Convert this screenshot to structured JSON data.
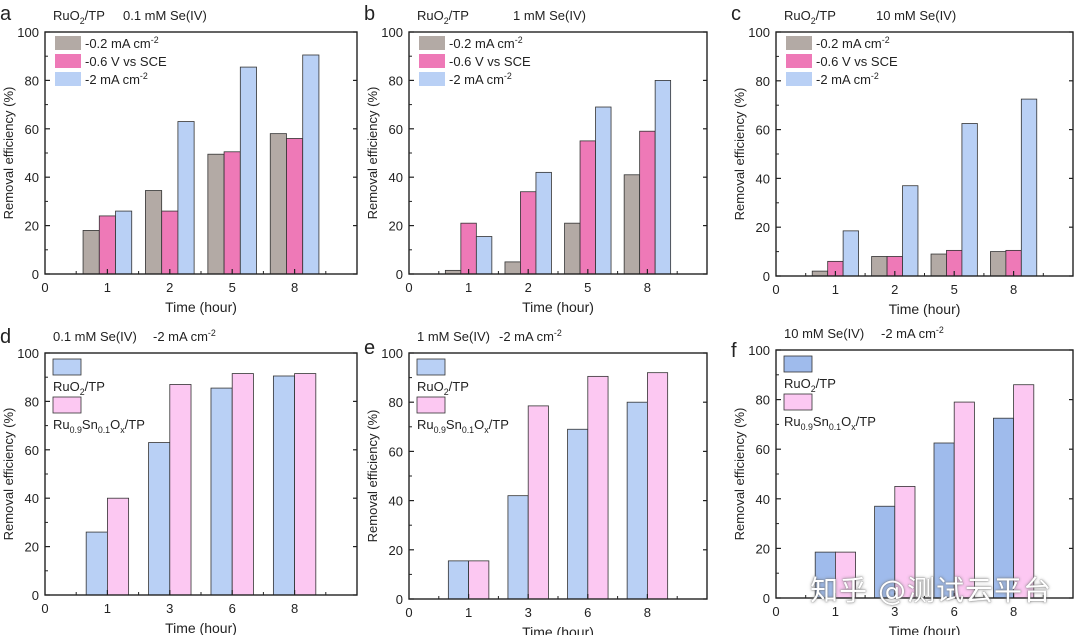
{
  "colors": {
    "gray": "#b3aaa5",
    "pink": "#ee79b7",
    "blue": "#b9d0f5",
    "blue_mid": "#9fbbec",
    "light_pink": "#fcc8f2",
    "stroke": "#333333"
  },
  "watermark": "知乎 @测试云平台",
  "chart_data": [
    {
      "panel": "a",
      "type": "bar",
      "title_main": "RuO",
      "title_sub": "2",
      "title_rest": "/TP",
      "title_cond": "0.1 mM Se(IV)",
      "xlabel": "Time (hour)",
      "ylabel": "Removal efficiency (%)",
      "ylim": [
        0,
        100
      ],
      "yticks": [
        0,
        20,
        40,
        60,
        80,
        100
      ],
      "categories": [
        "1",
        "2",
        "5",
        "8"
      ],
      "x_zero_label": "0",
      "legend_position": "top-left",
      "series": [
        {
          "name": "-0.2 mA cm",
          "sup": "-2",
          "color": "gray",
          "values": [
            18,
            34.5,
            49.5,
            58
          ]
        },
        {
          "name": "-0.6 V vs SCE",
          "sup": "",
          "color": "pink",
          "values": [
            24,
            26,
            50.5,
            56
          ]
        },
        {
          "name": "-2 mA cm",
          "sup": "-2",
          "color": "blue",
          "values": [
            26,
            63,
            85.5,
            90.5
          ]
        }
      ]
    },
    {
      "panel": "b",
      "type": "bar",
      "title_main": "RuO",
      "title_sub": "2",
      "title_rest": "/TP",
      "title_cond": "1 mM Se(IV)",
      "xlabel": "Time (hour)",
      "ylabel": "Removal efficiency (%)",
      "ylim": [
        0,
        100
      ],
      "yticks": [
        0,
        20,
        40,
        60,
        80,
        100
      ],
      "categories": [
        "1",
        "2",
        "5",
        "8"
      ],
      "x_zero_label": "0",
      "legend_position": "top-left",
      "series": [
        {
          "name": "-0.2 mA cm",
          "sup": "-2",
          "color": "gray",
          "values": [
            1.5,
            5,
            21,
            41
          ]
        },
        {
          "name": "-0.6 V vs SCE",
          "sup": "",
          "color": "pink",
          "values": [
            21,
            34,
            55,
            59
          ]
        },
        {
          "name": "-2 mA cm",
          "sup": "-2",
          "color": "blue",
          "values": [
            15.5,
            42,
            69,
            80
          ]
        }
      ]
    },
    {
      "panel": "c",
      "type": "bar",
      "title_main": "RuO",
      "title_sub": "2",
      "title_rest": "/TP",
      "title_cond": "10 mM Se(IV)",
      "xlabel": "Time (hour)",
      "ylabel": "Removal efficiency (%)",
      "ylim": [
        0,
        100
      ],
      "yticks": [
        0,
        20,
        40,
        60,
        80,
        100
      ],
      "categories": [
        "1",
        "2",
        "5",
        "8"
      ],
      "x_zero_label": "0",
      "legend_position": "top-left",
      "series": [
        {
          "name": "-0.2 mA cm",
          "sup": "-2",
          "color": "gray",
          "values": [
            2,
            8,
            9,
            10
          ]
        },
        {
          "name": "-0.6 V vs SCE",
          "sup": "",
          "color": "pink",
          "values": [
            6,
            8,
            10.5,
            10.5
          ]
        },
        {
          "name": "-2 mA cm",
          "sup": "-2",
          "color": "blue",
          "values": [
            18.5,
            37,
            62.5,
            72.5
          ]
        }
      ]
    },
    {
      "panel": "d",
      "type": "bar",
      "title_cond": "0.1 mM Se(IV)",
      "title_current": "-2 mA cm",
      "title_current_sup": "-2",
      "xlabel": "Time (hour)",
      "ylabel": "Removal efficiency (%)",
      "ylim": [
        0,
        100
      ],
      "yticks": [
        0,
        20,
        40,
        60,
        80,
        100
      ],
      "categories": [
        "1",
        "3",
        "6",
        "8"
      ],
      "x_zero_label": "0",
      "legend_position": "top-left",
      "series": [
        {
          "name_parts": [
            "RuO",
            "2",
            "/TP"
          ],
          "color": "blue",
          "values": [
            26,
            63,
            85.5,
            90.5
          ]
        },
        {
          "name_parts": [
            "Ru",
            "0.9",
            "Sn",
            "0.1",
            "O",
            "x",
            "/TP"
          ],
          "color": "light_pink",
          "values": [
            40,
            87,
            91.5,
            91.5
          ]
        }
      ]
    },
    {
      "panel": "e",
      "type": "bar",
      "title_cond": "1 mM Se(IV)",
      "title_current": "-2 mA cm",
      "title_current_sup": "-2",
      "xlabel": "Time (hour)",
      "ylabel": "Removal efficiency (%)",
      "ylim": [
        0,
        100
      ],
      "yticks": [
        0,
        20,
        40,
        60,
        80,
        100
      ],
      "categories": [
        "1",
        "3",
        "6",
        "8"
      ],
      "x_zero_label": "0",
      "legend_position": "top-left",
      "series": [
        {
          "name_parts": [
            "RuO",
            "2",
            "/TP"
          ],
          "color": "blue",
          "values": [
            15.5,
            42,
            69,
            80
          ]
        },
        {
          "name_parts": [
            "Ru",
            "0.9",
            "Sn",
            "0.1",
            "O",
            "x",
            "/TP"
          ],
          "color": "light_pink",
          "values": [
            15.5,
            78.5,
            90.5,
            92
          ]
        }
      ]
    },
    {
      "panel": "f",
      "type": "bar",
      "title_cond": "10 mM Se(IV)",
      "title_current": "-2 mA cm",
      "title_current_sup": "-2",
      "xlabel": "Time (hour)",
      "ylabel": "Removal efficiency (%)",
      "ylim": [
        0,
        100
      ],
      "yticks": [
        0,
        20,
        40,
        60,
        80,
        100
      ],
      "categories": [
        "1",
        "3",
        "6",
        "8"
      ],
      "x_zero_label": "0",
      "legend_position": "top-left",
      "series": [
        {
          "name_parts": [
            "RuO",
            "2",
            "/TP"
          ],
          "color": "blue_mid",
          "values": [
            18.5,
            37,
            62.5,
            72.5
          ]
        },
        {
          "name_parts": [
            "Ru",
            "0.9",
            "Sn",
            "0.1",
            "O",
            "x",
            "/TP"
          ],
          "color": "light_pink",
          "values": [
            18.5,
            45,
            79,
            86
          ]
        }
      ]
    }
  ]
}
